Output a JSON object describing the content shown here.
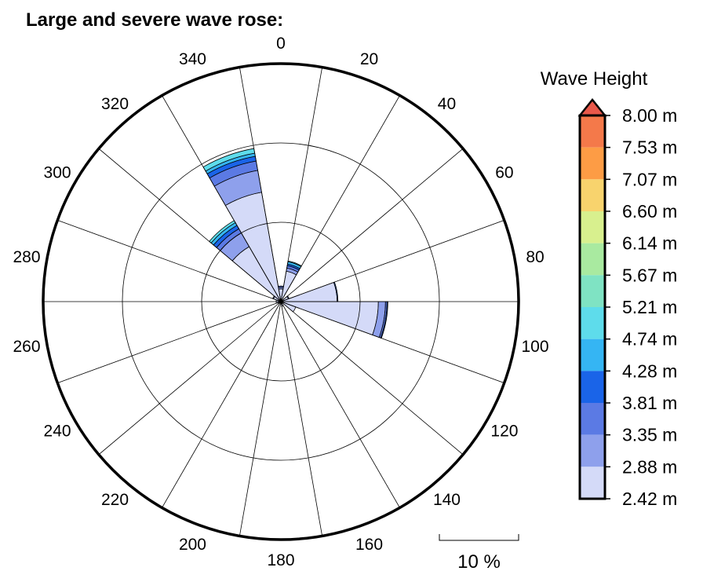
{
  "chart_data": {
    "type": "wave-rose",
    "title": "Large and severe wave rose:",
    "direction_labels": [
      "0",
      "20",
      "40",
      "60",
      "80",
      "100",
      "120",
      "140",
      "160",
      "180",
      "200",
      "220",
      "240",
      "260",
      "280",
      "300",
      "320",
      "340"
    ],
    "sector_width_deg": 20,
    "radial_max_percent": 15,
    "scale_bar": {
      "label": "10 %",
      "value_percent": 10
    },
    "legend": {
      "title": "Wave Height",
      "levels": [
        "8.00 m",
        "7.53 m",
        "7.07 m",
        "6.60 m",
        "6.14 m",
        "5.67 m",
        "5.21 m",
        "4.74 m",
        "4.28 m",
        "3.81 m",
        "3.35 m",
        "2.88 m",
        "2.42 m"
      ],
      "colors": [
        "#e9584a",
        "#f4794a",
        "#fd9c45",
        "#f8d36d",
        "#d8f08e",
        "#a9eaa0",
        "#7fe3c3",
        "#5edceb",
        "#35b5f3",
        "#1a64e8",
        "#5b7ae4",
        "#8ea0ec",
        "#d4daf8"
      ]
    },
    "series_bins": [
      "2.42-2.88 m",
      "2.88-3.35 m",
      "3.35-3.81 m",
      "3.81-4.28 m",
      "4.28-4.74 m",
      "4.74-5.21 m"
    ],
    "sectors": [
      {
        "direction": 0,
        "values": [
          0.8,
          0.1,
          0.08,
          0.0,
          0.0,
          0.0
        ]
      },
      {
        "direction": 20,
        "values": [
          1.95,
          0.2,
          0.15,
          0.1,
          0.15,
          0.05
        ]
      },
      {
        "direction": 100,
        "values": [
          6.15,
          0.45,
          0.1,
          0.05,
          0.0,
          0.0
        ]
      },
      {
        "direction": 80,
        "values": [
          3.55,
          0.0,
          0.0,
          0.05,
          0.0,
          0.0
        ]
      },
      {
        "direction": 120,
        "values": [
          1.0,
          0.0,
          0.0,
          0.0,
          0.0,
          0.0
        ]
      },
      {
        "direction": 60,
        "values": [
          0.5,
          0.0,
          0.0,
          0.05,
          0.0,
          0.0
        ]
      },
      {
        "direction": 340,
        "values": [
          7.0,
          1.4,
          0.6,
          0.3,
          0.2,
          0.3
        ]
      },
      {
        "direction": 320,
        "values": [
          4.0,
          1.0,
          0.3,
          0.25,
          0.2,
          0.15
        ]
      },
      {
        "direction": 300,
        "values": [
          0.5,
          0.05,
          0.0,
          0.0,
          0.0,
          0.0
        ]
      },
      {
        "direction": 280,
        "values": [
          0.3,
          0.0,
          0.0,
          0.0,
          0.0,
          0.0
        ]
      },
      {
        "direction": 260,
        "values": [
          0.3,
          0.0,
          0.0,
          0.0,
          0.0,
          0.0
        ]
      },
      {
        "direction": 240,
        "values": [
          0.2,
          0.0,
          0.0,
          0.0,
          0.0,
          0.0
        ]
      },
      {
        "direction": 160,
        "values": [
          0.3,
          0.0,
          0.0,
          0.0,
          0.0,
          0.0
        ]
      }
    ]
  }
}
